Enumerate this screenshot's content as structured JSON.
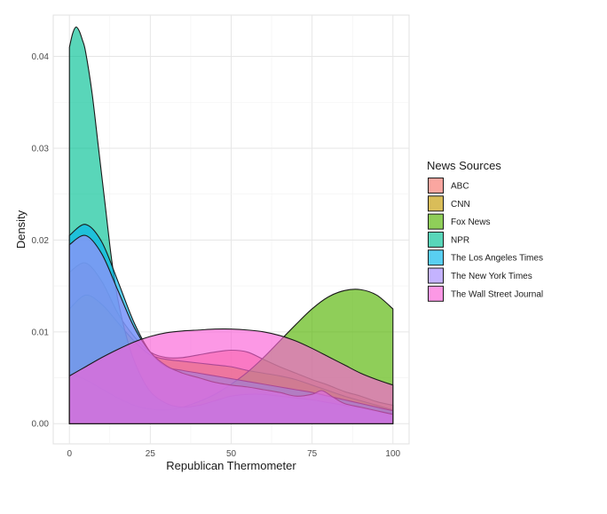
{
  "chart_data": {
    "type": "area",
    "subtype": "density",
    "xlabel": "Republican Thermometer",
    "ylabel": "Density",
    "xlim": [
      -5,
      105
    ],
    "ylim": [
      -0.0022,
      0.0445
    ],
    "x_ticks": [
      0,
      25,
      50,
      75,
      100
    ],
    "x_tick_labels": [
      "0",
      "25",
      "50",
      "75",
      "100"
    ],
    "y_ticks": [
      0,
      0.01,
      0.02,
      0.03,
      0.04
    ],
    "y_tick_labels": [
      "0.00",
      "0.01",
      "0.02",
      "0.03",
      "0.04"
    ],
    "grid": true,
    "fill_opacity": 0.65,
    "legend": {
      "title": "News Sources",
      "position": "right"
    },
    "series": [
      {
        "name": "ABC",
        "color": "#F8766D",
        "x": [
          0,
          5,
          10,
          15,
          20,
          25,
          30,
          35,
          40,
          45,
          50,
          55,
          60,
          65,
          70,
          75,
          80,
          85,
          90,
          95,
          100
        ],
        "y": [
          0.0165,
          0.0175,
          0.0155,
          0.012,
          0.0095,
          0.0078,
          0.0072,
          0.0072,
          0.0075,
          0.0078,
          0.008,
          0.0078,
          0.007,
          0.0062,
          0.0055,
          0.0048,
          0.0042,
          0.0035,
          0.003,
          0.0024,
          0.002
        ]
      },
      {
        "name": "CNN",
        "color": "#C49A00",
        "x": [
          0,
          5,
          10,
          15,
          20,
          25,
          30,
          35,
          40,
          45,
          50,
          55,
          60,
          65,
          70,
          75,
          80,
          85,
          90,
          95,
          100
        ],
        "y": [
          0.0125,
          0.014,
          0.013,
          0.011,
          0.009,
          0.0075,
          0.007,
          0.0068,
          0.0066,
          0.0064,
          0.0062,
          0.0058,
          0.0055,
          0.0052,
          0.0048,
          0.0042,
          0.0036,
          0.003,
          0.0025,
          0.002,
          0.0015
        ]
      },
      {
        "name": "Fox News",
        "color": "#53B400",
        "x": [
          0,
          5,
          10,
          15,
          20,
          25,
          30,
          35,
          40,
          45,
          50,
          55,
          60,
          65,
          70,
          75,
          80,
          85,
          90,
          95,
          100
        ],
        "y": [
          0.0055,
          0.0048,
          0.0038,
          0.0028,
          0.002,
          0.0016,
          0.0015,
          0.0018,
          0.0024,
          0.0032,
          0.0043,
          0.0056,
          0.0072,
          0.009,
          0.0108,
          0.0125,
          0.0138,
          0.0145,
          0.0146,
          0.014,
          0.0125
        ]
      },
      {
        "name": "NPR",
        "color": "#00C094",
        "x": [
          0,
          1,
          2,
          3,
          4,
          5,
          7,
          9,
          11,
          13,
          15,
          18,
          21,
          25,
          30,
          35,
          40,
          45,
          50,
          55,
          60,
          65,
          70,
          75,
          80,
          85,
          90,
          95,
          100
        ],
        "y": [
          0.041,
          0.0425,
          0.0432,
          0.0428,
          0.0418,
          0.0405,
          0.036,
          0.03,
          0.024,
          0.018,
          0.0135,
          0.009,
          0.006,
          0.0035,
          0.0022,
          0.0018,
          0.002,
          0.0025,
          0.003,
          0.0032,
          0.0032,
          0.003,
          0.0028,
          0.0026,
          0.0023,
          0.002,
          0.0017,
          0.0014,
          0.0011
        ]
      },
      {
        "name": "The Los Angeles Times",
        "color": "#00B6EB",
        "x": [
          0,
          5,
          10,
          15,
          20,
          25,
          30,
          35,
          40,
          45,
          50,
          55,
          60,
          65,
          70,
          75,
          80,
          85,
          90,
          95,
          100
        ],
        "y": [
          0.0205,
          0.0217,
          0.0198,
          0.0155,
          0.011,
          0.0078,
          0.0062,
          0.0058,
          0.0055,
          0.0052,
          0.0049,
          0.0046,
          0.0043,
          0.004,
          0.0037,
          0.0034,
          0.003,
          0.0026,
          0.0022,
          0.0018,
          0.0014
        ]
      },
      {
        "name": "The New York Times",
        "color": "#A58AFF",
        "x": [
          0,
          5,
          10,
          15,
          20,
          25,
          30,
          35,
          40,
          45,
          50,
          55,
          60,
          65,
          70,
          75,
          78,
          81,
          85,
          90,
          95,
          100
        ],
        "y": [
          0.0195,
          0.0205,
          0.0185,
          0.0145,
          0.0105,
          0.0078,
          0.0063,
          0.0055,
          0.005,
          0.0045,
          0.0042,
          0.004,
          0.0037,
          0.0034,
          0.003,
          0.0032,
          0.0036,
          0.003,
          0.0022,
          0.0018,
          0.0014,
          0.001
        ]
      },
      {
        "name": "The Wall Street Journal",
        "color": "#FB61D7",
        "x": [
          0,
          5,
          10,
          15,
          20,
          25,
          30,
          35,
          40,
          45,
          50,
          55,
          60,
          65,
          70,
          75,
          80,
          85,
          90,
          95,
          100
        ],
        "y": [
          0.0052,
          0.0062,
          0.0072,
          0.0081,
          0.0089,
          0.0095,
          0.0099,
          0.0101,
          0.0102,
          0.0103,
          0.0103,
          0.0102,
          0.01,
          0.0096,
          0.009,
          0.0082,
          0.0073,
          0.0064,
          0.0055,
          0.0048,
          0.0042
        ]
      }
    ]
  }
}
